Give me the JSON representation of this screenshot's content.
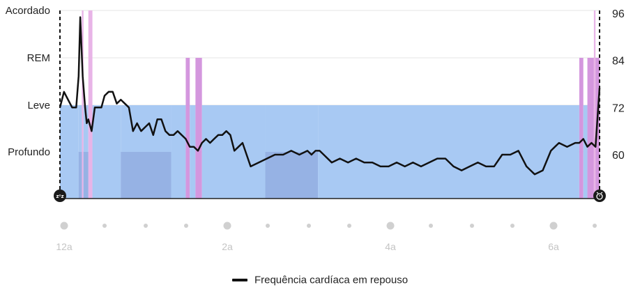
{
  "chart_data": {
    "type": "area",
    "stages": [
      "Acordado",
      "REM",
      "Leve",
      "Profundo"
    ],
    "hr_ticks": [
      "96",
      "84",
      "72",
      "60"
    ],
    "hr_range": [
      48,
      96
    ],
    "time_labels": [
      "12a",
      "2a",
      "4a",
      "6a"
    ],
    "time_label_hours": [
      0,
      2,
      4,
      6
    ],
    "x_range": [
      -0.05,
      6.6
    ],
    "stage_series": [
      {
        "stage": "Leve",
        "start": -0.05,
        "end": 0.18
      },
      {
        "stage": "Profundo",
        "start": 0.18,
        "end": 0.22
      },
      {
        "stage": "Acordado",
        "start": 0.22,
        "end": 0.24
      },
      {
        "stage": "Profundo",
        "start": 0.24,
        "end": 0.3
      },
      {
        "stage": "Acordado",
        "start": 0.3,
        "end": 0.35
      },
      {
        "stage": "Leve",
        "start": 0.35,
        "end": 0.7
      },
      {
        "stage": "Profundo",
        "start": 0.7,
        "end": 1.32
      },
      {
        "stage": "Leve",
        "start": 1.32,
        "end": 1.5
      },
      {
        "stage": "REM",
        "start": 1.5,
        "end": 1.55
      },
      {
        "stage": "Leve",
        "start": 1.55,
        "end": 1.62
      },
      {
        "stage": "REM",
        "start": 1.62,
        "end": 1.7
      },
      {
        "stage": "Leve",
        "start": 1.7,
        "end": 2.48
      },
      {
        "stage": "Profundo",
        "start": 2.48,
        "end": 3.13
      },
      {
        "stage": "Leve",
        "start": 3.13,
        "end": 6.35
      },
      {
        "stage": "REM",
        "start": 6.35,
        "end": 6.4
      },
      {
        "stage": "Leve",
        "start": 6.4,
        "end": 6.45
      },
      {
        "stage": "REM",
        "start": 6.45,
        "end": 6.53
      },
      {
        "stage": "Acordado",
        "start": 6.53,
        "end": 6.55
      },
      {
        "stage": "REM",
        "start": 6.55,
        "end": 6.6
      }
    ],
    "series": [
      {
        "name": "Frequência cardíaca em repouso",
        "x": [
          -0.05,
          0.0,
          0.05,
          0.1,
          0.15,
          0.18,
          0.2,
          0.23,
          0.26,
          0.28,
          0.3,
          0.34,
          0.38,
          0.42,
          0.46,
          0.5,
          0.55,
          0.6,
          0.65,
          0.7,
          0.75,
          0.8,
          0.85,
          0.9,
          0.95,
          1.0,
          1.05,
          1.1,
          1.15,
          1.2,
          1.25,
          1.3,
          1.35,
          1.4,
          1.45,
          1.5,
          1.55,
          1.6,
          1.65,
          1.7,
          1.75,
          1.8,
          1.85,
          1.9,
          1.95,
          2.0,
          2.05,
          2.1,
          2.15,
          2.2,
          2.3,
          2.4,
          2.5,
          2.6,
          2.7,
          2.8,
          2.9,
          3.0,
          3.05,
          3.1,
          3.15,
          3.2,
          3.3,
          3.4,
          3.5,
          3.6,
          3.7,
          3.8,
          3.9,
          4.0,
          4.1,
          4.2,
          4.3,
          4.4,
          4.5,
          4.6,
          4.7,
          4.8,
          4.9,
          5.0,
          5.1,
          5.2,
          5.3,
          5.4,
          5.5,
          5.6,
          5.7,
          5.8,
          5.9,
          6.0,
          6.05,
          6.1,
          6.2,
          6.3,
          6.35,
          6.4,
          6.45,
          6.5,
          6.55,
          6.6
        ],
        "values": [
          72,
          76,
          74,
          72,
          72,
          80,
          95,
          80,
          72,
          68,
          69,
          66,
          72,
          72,
          72,
          75,
          76,
          76,
          73,
          74,
          73,
          72,
          66,
          68,
          66,
          67,
          68,
          65,
          69,
          69,
          66,
          65,
          65,
          66,
          65,
          64,
          62,
          62,
          61,
          63,
          64,
          63,
          64,
          65,
          65,
          66,
          65,
          61,
          62,
          63,
          57,
          58,
          59,
          60,
          60,
          61,
          60,
          61,
          60,
          61,
          61,
          60,
          58,
          59,
          58,
          59,
          58,
          58,
          57,
          57,
          58,
          57,
          58,
          57,
          58,
          59,
          59,
          57,
          56,
          57,
          58,
          57,
          57,
          60,
          60,
          61,
          57,
          55,
          56,
          61,
          62,
          63,
          62,
          63,
          63,
          64,
          62,
          63,
          62,
          77
        ]
      }
    ],
    "bedtime_icon": "zzz-icon",
    "wake_icon": "alarm-clock-icon",
    "colors": {
      "light": "#a8c9f3",
      "deep": "#96b2e4",
      "rem": "#d291dc",
      "awake": "#e7b0e6",
      "hr_line": "#111111",
      "tick_dot": "#d0d0d0",
      "time_label": "#c4c4c4"
    }
  },
  "legend": {
    "label": "Frequência cardíaca em repouso"
  }
}
